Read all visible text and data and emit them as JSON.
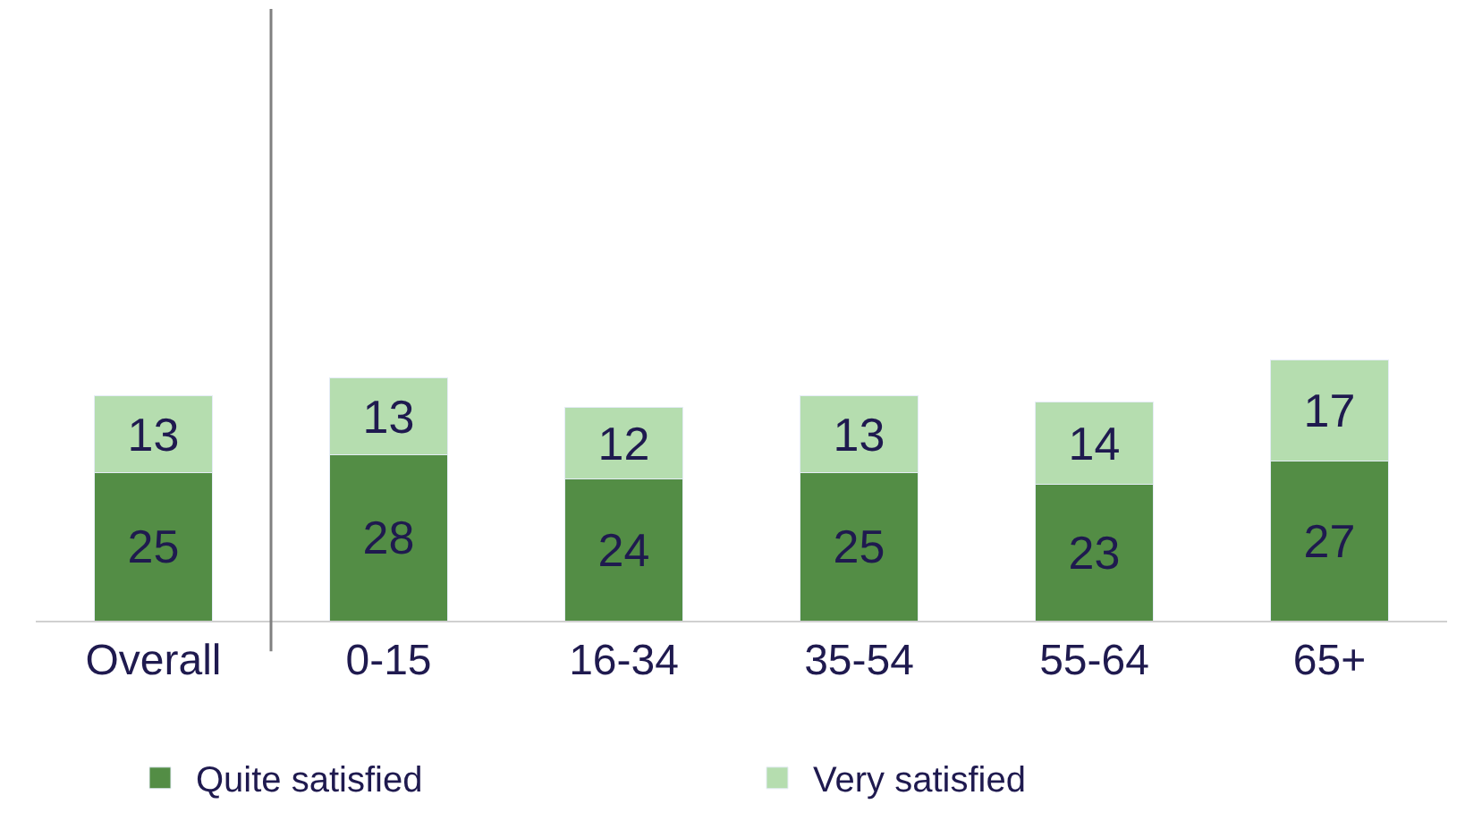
{
  "chart_data": {
    "type": "bar",
    "stacked": true,
    "data_labels": true,
    "legend": "bottom",
    "categories": [
      "Overall",
      "0-15",
      "16-34",
      "35-54",
      "55-64",
      "65+"
    ],
    "series": [
      {
        "name": "Quite satisfied",
        "color": "#538d45",
        "values": [
          25,
          28,
          24,
          25,
          23,
          27
        ]
      },
      {
        "name": "Very satisfied",
        "color": "#b5ddaf",
        "values": [
          13,
          13,
          12,
          13,
          14,
          17
        ]
      }
    ]
  }
}
